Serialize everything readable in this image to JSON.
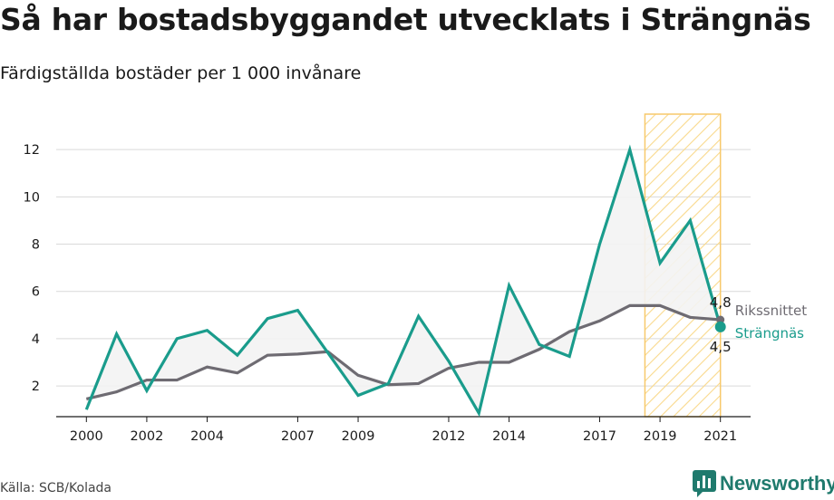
{
  "header": {
    "title": "Så har bostadsbyggandet utvecklats i Strängnäs",
    "subtitle": "Färdigställda bostäder per 1 000 invånare"
  },
  "footer": {
    "source": "Källa: SCB/Kolada",
    "brand": "Newsworthy"
  },
  "colors": {
    "strangnas": "#1a9c8c",
    "riksnittet": "#6e6b72",
    "highlight_border": "#f7c96b",
    "highlight_hatch": "#f9d98c",
    "grid": "#d9d9d9",
    "fill_between": "#f3f3f3"
  },
  "chart_data": {
    "type": "line",
    "x": [
      2000,
      2001,
      2002,
      2003,
      2004,
      2005,
      2006,
      2007,
      2008,
      2009,
      2010,
      2011,
      2012,
      2013,
      2014,
      2015,
      2016,
      2017,
      2018,
      2019,
      2020,
      2021
    ],
    "series": [
      {
        "name": "Strängnäs",
        "values": [
          1.0,
          4.2,
          1.8,
          4.0,
          4.35,
          3.3,
          4.85,
          5.2,
          3.4,
          1.6,
          2.1,
          4.95,
          3.05,
          0.85,
          6.25,
          3.75,
          3.25,
          8.0,
          12.0,
          7.2,
          9.0,
          4.5
        ]
      },
      {
        "name": "Rikssnittet",
        "values": [
          1.45,
          1.75,
          2.25,
          2.25,
          2.8,
          2.55,
          3.3,
          3.35,
          3.45,
          2.45,
          2.05,
          2.1,
          2.75,
          3.0,
          3.0,
          3.55,
          4.3,
          4.75,
          5.4,
          5.4,
          4.9,
          4.8
        ]
      }
    ],
    "end_labels": {
      "strangnas": "4,5",
      "riksnittet": "4,8"
    },
    "x_ticks": [
      2000,
      2002,
      2004,
      2007,
      2009,
      2012,
      2014,
      2017,
      2019,
      2021
    ],
    "y_ticks": [
      2,
      4,
      6,
      8,
      10,
      12
    ],
    "xlim": [
      1999.0,
      2022.0
    ],
    "ylim": [
      0.7,
      13.5
    ],
    "highlight_range": [
      2018.5,
      2021.0
    ],
    "grid": "horizontal",
    "xlabel": "",
    "ylabel": ""
  }
}
